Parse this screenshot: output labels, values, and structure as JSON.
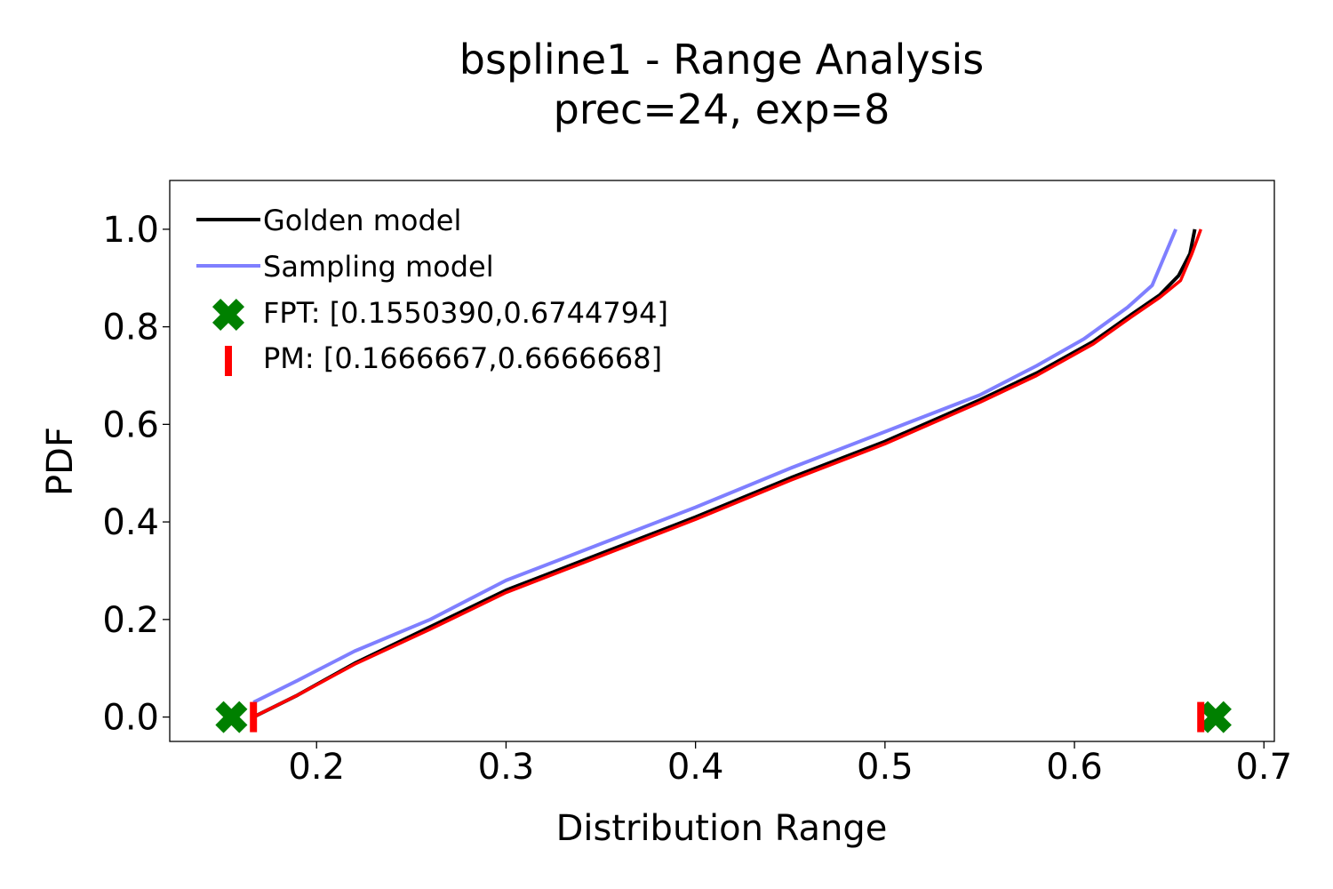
{
  "chart_data": {
    "type": "line",
    "title": "bspline1 - Range Analysis",
    "subtitle": "prec=24, exp=8",
    "xlabel": "Distribution Range",
    "ylabel": "PDF",
    "xlim": [
      0.1225,
      0.7055
    ],
    "ylim": [
      -0.05,
      1.1
    ],
    "xticks": [
      0.2,
      0.3,
      0.4,
      0.5,
      0.6,
      0.7
    ],
    "yticks": [
      0.0,
      0.2,
      0.4,
      0.6,
      0.8,
      1.0
    ],
    "xtick_labels": [
      "0.2",
      "0.3",
      "0.4",
      "0.5",
      "0.6",
      "0.7"
    ],
    "ytick_labels": [
      "0.0",
      "0.2",
      "0.4",
      "0.6",
      "0.8",
      "1.0"
    ],
    "grid": false,
    "legend_position": "top-left",
    "series": [
      {
        "name": "Golden model",
        "color": "#000000",
        "x": [
          0.1667,
          0.19,
          0.22,
          0.26,
          0.3,
          0.35,
          0.4,
          0.45,
          0.5,
          0.55,
          0.58,
          0.61,
          0.63,
          0.645,
          0.655,
          0.661,
          0.6635
        ],
        "y": [
          0.0,
          0.045,
          0.11,
          0.185,
          0.26,
          0.335,
          0.41,
          0.49,
          0.565,
          0.65,
          0.705,
          0.77,
          0.825,
          0.865,
          0.905,
          0.95,
          1.0
        ]
      },
      {
        "name": "Sampling model",
        "color": "#7f7fff",
        "x": [
          0.1667,
          0.19,
          0.22,
          0.26,
          0.3,
          0.35,
          0.4,
          0.45,
          0.5,
          0.55,
          0.58,
          0.605,
          0.628,
          0.641,
          0.6535
        ],
        "y": [
          0.03,
          0.075,
          0.135,
          0.2,
          0.28,
          0.355,
          0.43,
          0.51,
          0.585,
          0.66,
          0.72,
          0.775,
          0.84,
          0.885,
          1.0
        ]
      },
      {
        "name": "",
        "color": "#ff0000",
        "x": [
          0.1667,
          0.19,
          0.22,
          0.26,
          0.3,
          0.35,
          0.4,
          0.45,
          0.5,
          0.55,
          0.58,
          0.61,
          0.63,
          0.645,
          0.656,
          0.662,
          0.6667
        ],
        "y": [
          0.0,
          0.045,
          0.108,
          0.18,
          0.255,
          0.33,
          0.405,
          0.485,
          0.56,
          0.645,
          0.7,
          0.765,
          0.82,
          0.86,
          0.895,
          0.95,
          1.0
        ]
      }
    ],
    "markers": [
      {
        "name": "FPT: [0.1550390,0.6744794]",
        "color": "#008000",
        "shape": "x-filled",
        "x": [
          0.155039,
          0.6744794
        ],
        "y": [
          0.0,
          0.0
        ]
      },
      {
        "name": "PM: [0.1666667,0.6666668]",
        "color": "#ff0000",
        "shape": "vertical-bar",
        "x": [
          0.1666667,
          0.6666668
        ],
        "y": [
          0.0,
          0.0
        ]
      }
    ]
  }
}
